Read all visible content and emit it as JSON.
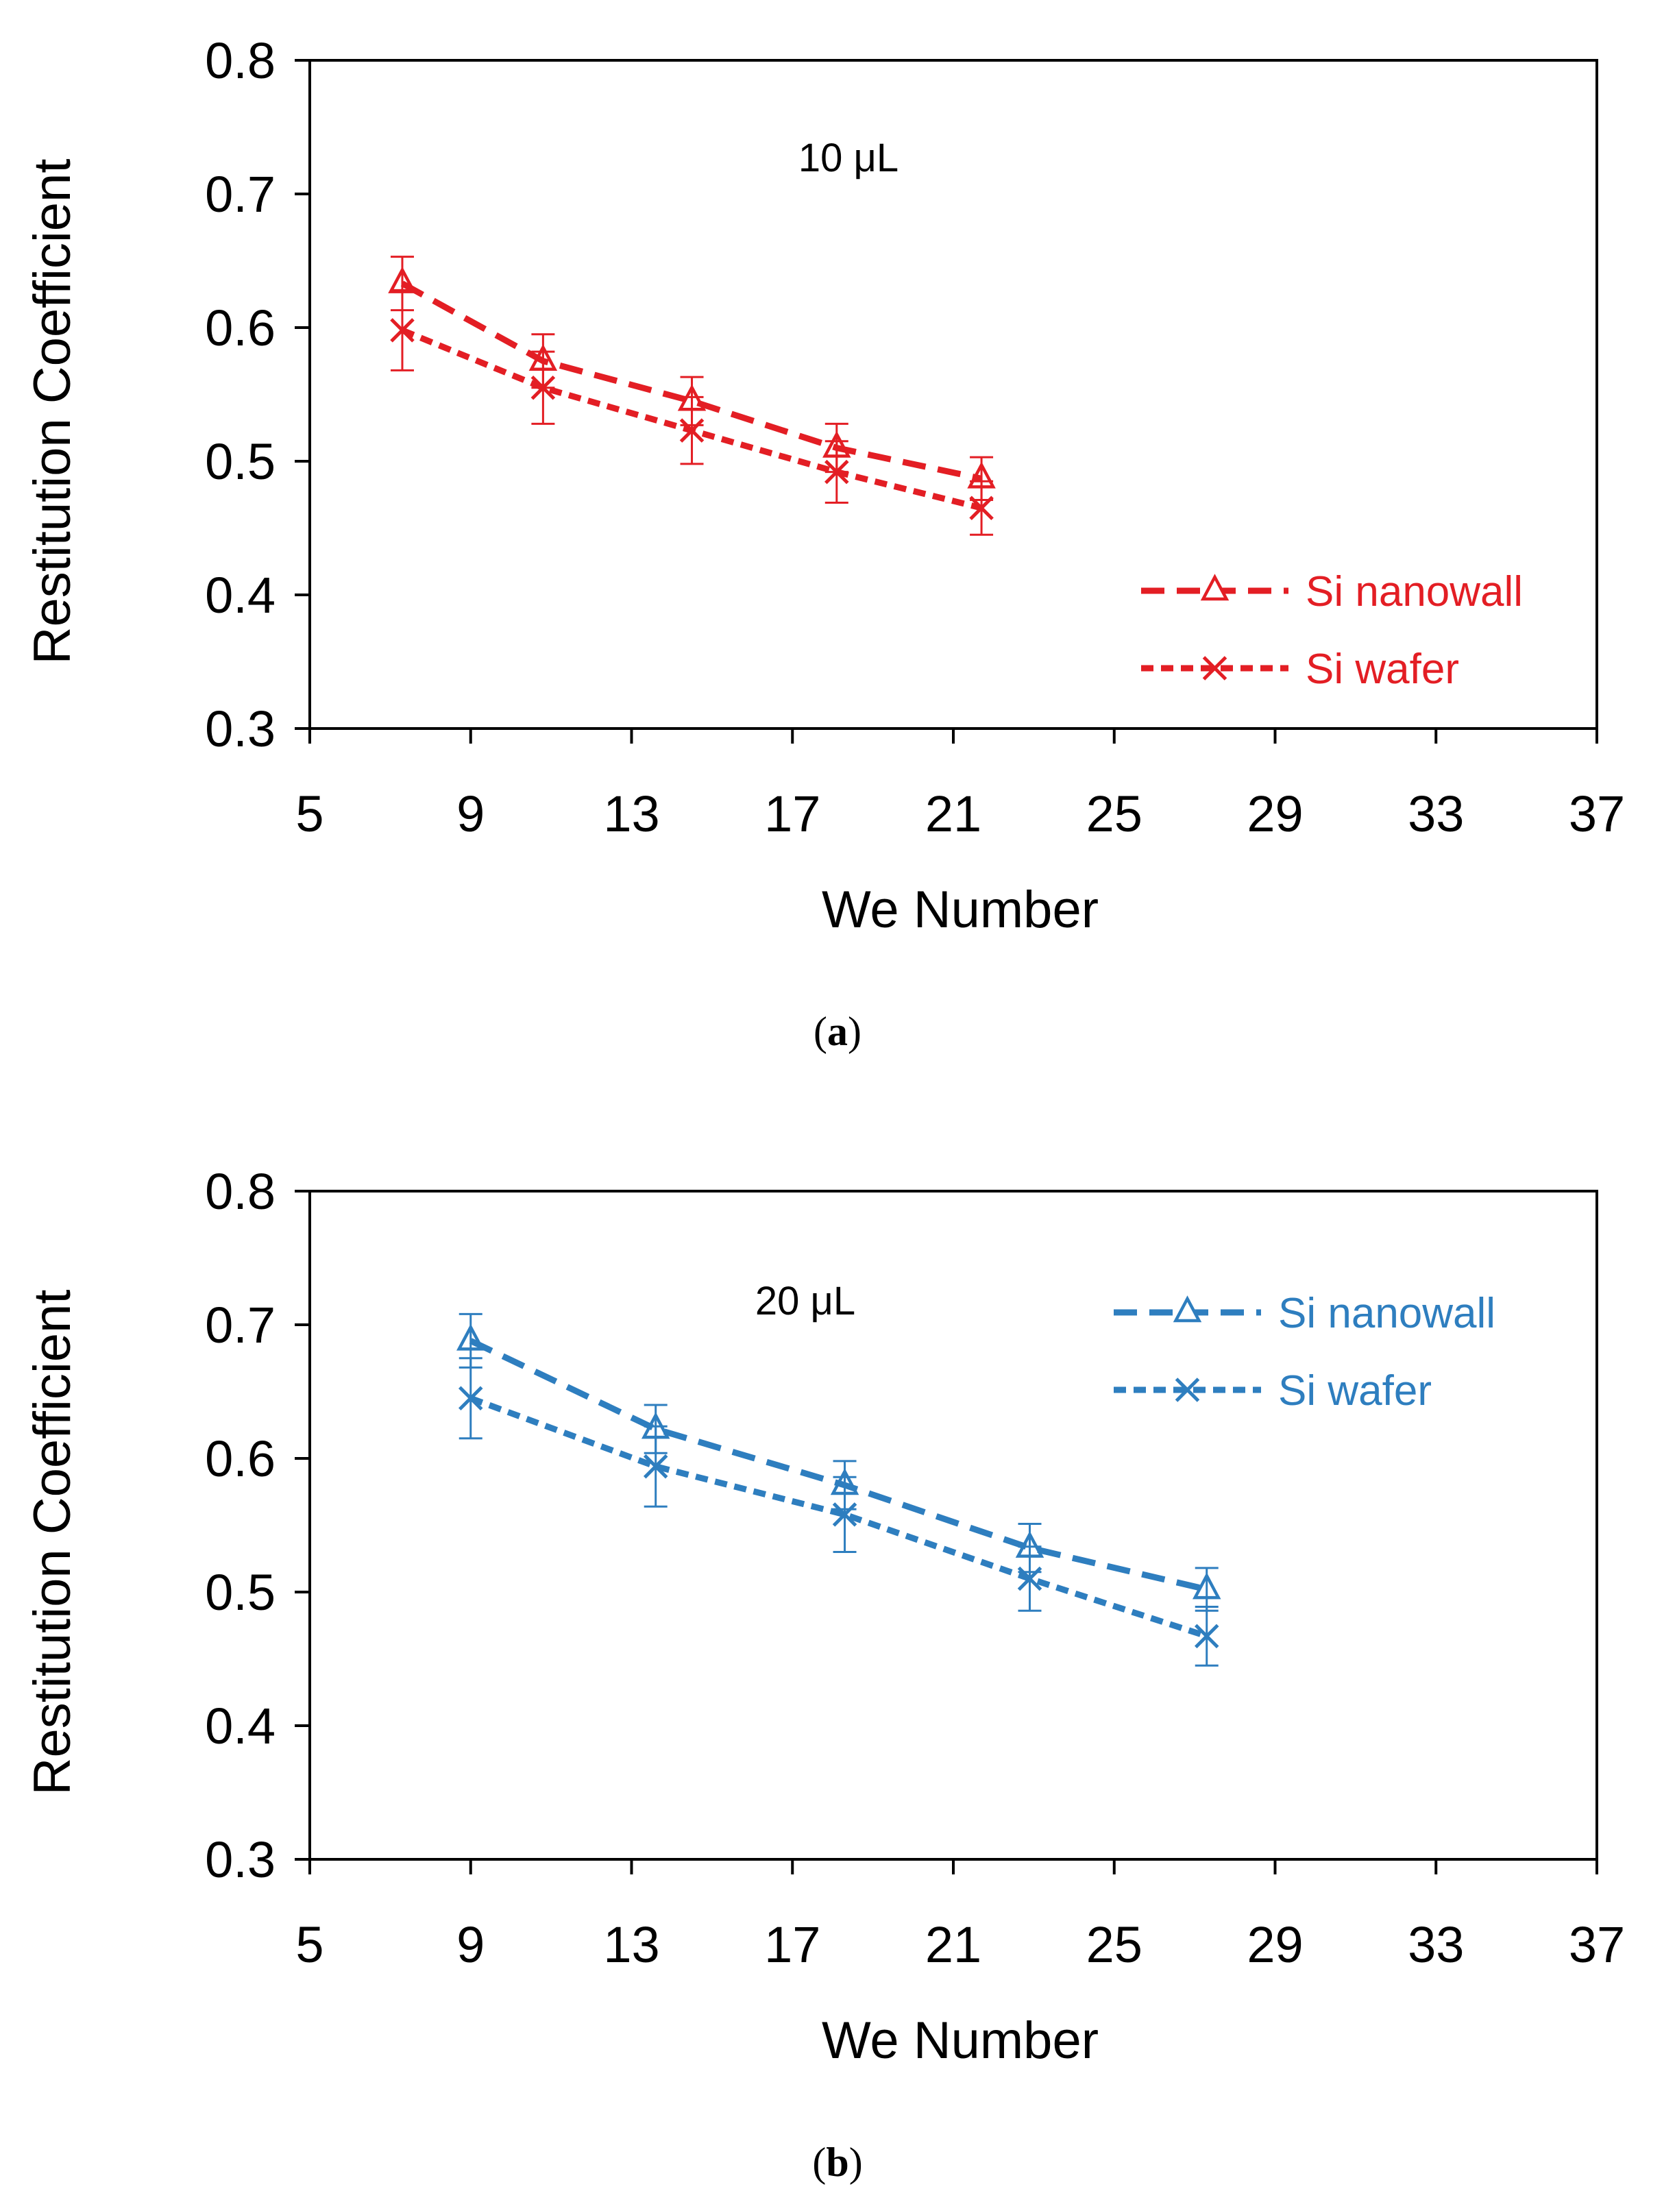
{
  "chart_data": [
    {
      "type": "line",
      "annotation": "10 μL",
      "xlabel": "We Number",
      "ylabel": "Restitution Coefficient",
      "xlim": [
        5,
        37
      ],
      "ylim": [
        0.3,
        0.8
      ],
      "xticks": [
        "5",
        "9",
        "13",
        "17",
        "21",
        "25",
        "29",
        "33",
        "37"
      ],
      "yticks": [
        "0.3",
        "0.4",
        "0.5",
        "0.6",
        "0.7",
        "0.8"
      ],
      "color": "#e31e24",
      "legend_position": "bottom-right",
      "caption_letter": "a",
      "series": [
        {
          "name": "Si nanowall",
          "marker": "triangle",
          "line_style": "long-dash",
          "x": [
            7.3,
            10.8,
            14.5,
            18.1,
            21.7
          ],
          "y": [
            0.633,
            0.575,
            0.545,
            0.51,
            0.487
          ],
          "err": [
            0.02,
            0.02,
            0.018,
            0.018,
            0.016
          ]
        },
        {
          "name": "Si wafer",
          "marker": "x",
          "line_style": "short-dash",
          "x": [
            7.3,
            10.8,
            14.5,
            18.1,
            21.7
          ],
          "y": [
            0.598,
            0.555,
            0.523,
            0.492,
            0.465
          ],
          "err": [
            0.03,
            0.027,
            0.025,
            0.023,
            0.02
          ]
        }
      ]
    },
    {
      "type": "line",
      "annotation": "20 μL",
      "xlabel": "We Number",
      "ylabel": "Restitution Coefficient",
      "xlim": [
        5,
        37
      ],
      "ylim": [
        0.3,
        0.8
      ],
      "xticks": [
        "5",
        "9",
        "13",
        "17",
        "21",
        "25",
        "29",
        "33",
        "37"
      ],
      "yticks": [
        "0.3",
        "0.4",
        "0.5",
        "0.6",
        "0.7",
        "0.8"
      ],
      "color": "#2e7ebf",
      "legend_position": "top-right",
      "caption_letter": "b",
      "series": [
        {
          "name": "Si nanowall",
          "marker": "triangle",
          "line_style": "long-dash",
          "x": [
            9.0,
            13.6,
            18.3,
            22.9,
            27.3
          ],
          "y": [
            0.688,
            0.622,
            0.58,
            0.533,
            0.502
          ],
          "err": [
            0.02,
            0.018,
            0.018,
            0.018,
            0.016
          ]
        },
        {
          "name": "Si wafer",
          "marker": "x",
          "line_style": "short-dash",
          "x": [
            9.0,
            13.6,
            18.3,
            22.9,
            27.3
          ],
          "y": [
            0.645,
            0.594,
            0.558,
            0.51,
            0.467
          ],
          "err": [
            0.03,
            0.03,
            0.028,
            0.024,
            0.022
          ]
        }
      ]
    }
  ]
}
